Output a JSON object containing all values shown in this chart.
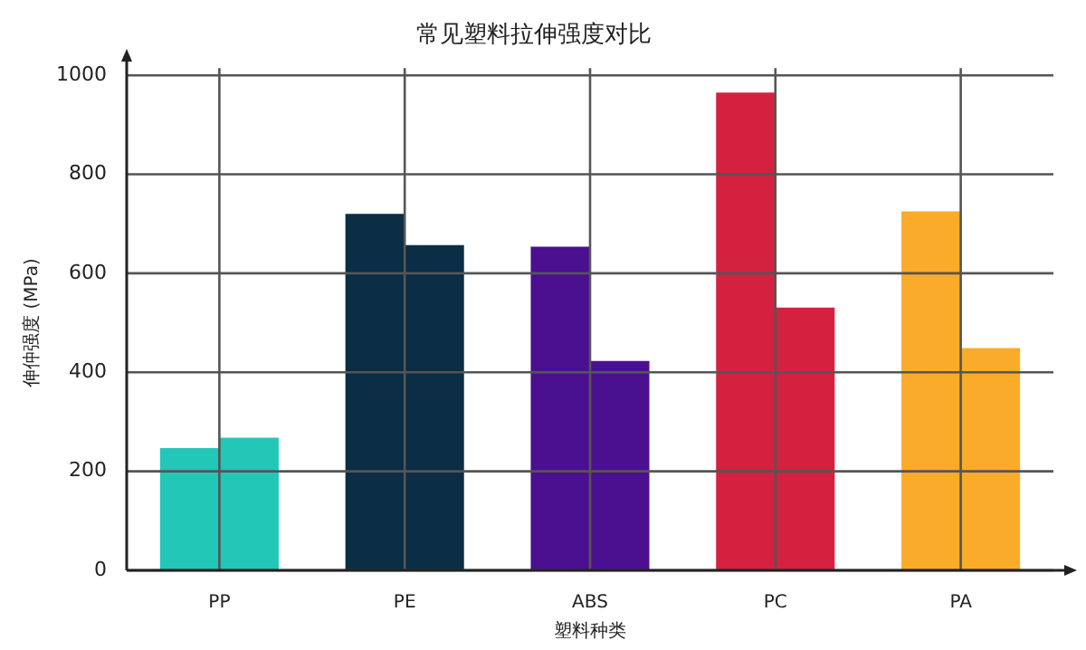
{
  "chart_data": {
    "type": "bar",
    "title": "常见塑料拉伸强度对比",
    "xlabel": "塑料种类",
    "ylabel": "伸仲强度 (MPa)",
    "categories": [
      "PP",
      "PE",
      "ABS",
      "PC",
      "PA"
    ],
    "series": [
      {
        "colors": [
          "#22c7b8",
          "#0b2d45",
          "#4a1090",
          "#d42140",
          "#fbab2a"
        ],
        "values": [
          247,
          720,
          654,
          965,
          725
        ]
      },
      {
        "colors": [
          "#22c7b8",
          "#0b2d45",
          "#4a1090",
          "#d42140",
          "#fbab2a"
        ],
        "values": [
          268,
          657,
          423,
          531,
          449
        ]
      }
    ],
    "ylim": [
      0,
      1000
    ],
    "yticks": [
      0,
      200,
      400,
      600,
      800,
      1000
    ],
    "grid": true,
    "legend": false
  }
}
